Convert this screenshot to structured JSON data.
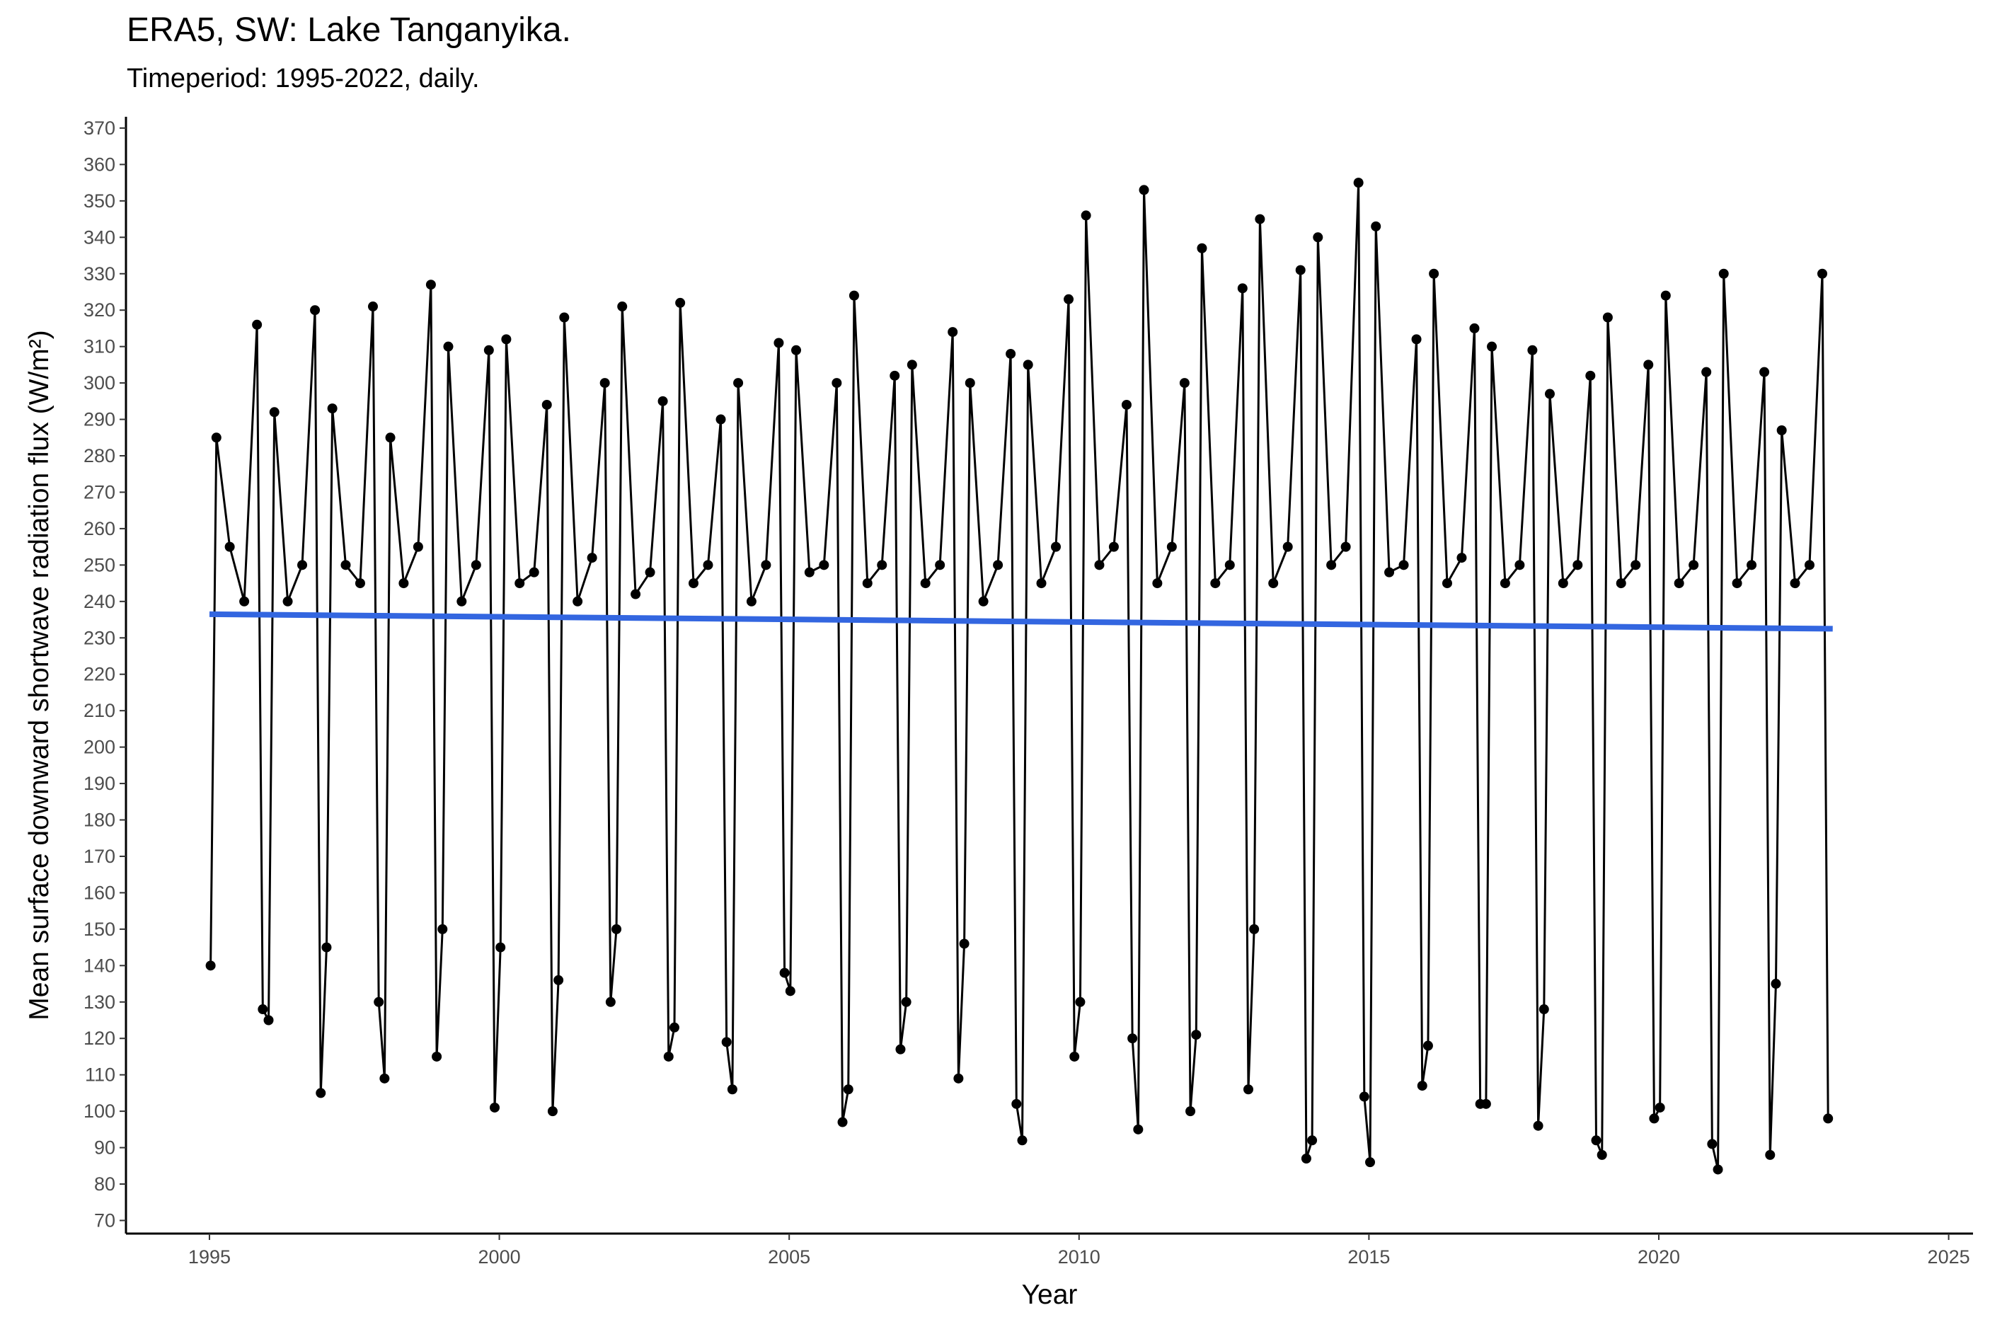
{
  "chart_data": {
    "type": "line",
    "title": "ERA5, SW: Lake Tanganyika.",
    "subtitle": "Timeperiod: 1995-2022, daily.",
    "x_label": "Year",
    "y_label": "Mean surface downward shortwave radiation flux (W/m²)",
    "xlim": [
      1993.56,
      2025.42
    ],
    "xticks": [
      1995,
      2000,
      2005,
      2010,
      2015,
      2020,
      2025
    ],
    "ylim": [
      66.4,
      373.1
    ],
    "yticks": [
      70,
      80,
      90,
      100,
      110,
      120,
      130,
      140,
      150,
      160,
      170,
      180,
      190,
      200,
      210,
      220,
      230,
      240,
      250,
      260,
      270,
      280,
      290,
      300,
      310,
      320,
      330,
      340,
      350,
      360,
      370
    ],
    "grid": false,
    "series": [
      {
        "name": "SW",
        "color": "#000000",
        "markers": true,
        "x": [
          1995.02,
          1995.12,
          1995.35,
          1995.6,
          1995.82,
          1995.92,
          1996.02,
          1996.12,
          1996.35,
          1996.6,
          1996.82,
          1996.92,
          1997.02,
          1997.12,
          1997.35,
          1997.6,
          1997.82,
          1997.92,
          1998.02,
          1998.12,
          1998.35,
          1998.6,
          1998.82,
          1998.92,
          1999.02,
          1999.12,
          1999.35,
          1999.6,
          1999.82,
          1999.92,
          2000.02,
          2000.12,
          2000.35,
          2000.6,
          2000.82,
          2000.92,
          2001.02,
          2001.12,
          2001.35,
          2001.6,
          2001.82,
          2001.92,
          2002.02,
          2002.12,
          2002.35,
          2002.6,
          2002.82,
          2002.92,
          2003.02,
          2003.12,
          2003.35,
          2003.6,
          2003.82,
          2003.92,
          2004.02,
          2004.12,
          2004.35,
          2004.6,
          2004.82,
          2004.92,
          2005.02,
          2005.12,
          2005.35,
          2005.6,
          2005.82,
          2005.92,
          2006.02,
          2006.12,
          2006.35,
          2006.6,
          2006.82,
          2006.92,
          2007.02,
          2007.12,
          2007.35,
          2007.6,
          2007.82,
          2007.92,
          2008.02,
          2008.12,
          2008.35,
          2008.6,
          2008.82,
          2008.92,
          2009.02,
          2009.12,
          2009.35,
          2009.6,
          2009.82,
          2009.92,
          2010.02,
          2010.12,
          2010.35,
          2010.6,
          2010.82,
          2010.92,
          2011.02,
          2011.12,
          2011.35,
          2011.6,
          2011.82,
          2011.92,
          2012.02,
          2012.12,
          2012.35,
          2012.6,
          2012.82,
          2012.92,
          2013.02,
          2013.12,
          2013.35,
          2013.6,
          2013.82,
          2013.92,
          2014.02,
          2014.12,
          2014.35,
          2014.6,
          2014.82,
          2014.92,
          2015.02,
          2015.12,
          2015.35,
          2015.6,
          2015.82,
          2015.92,
          2016.02,
          2016.12,
          2016.35,
          2016.6,
          2016.82,
          2016.92,
          2017.02,
          2017.12,
          2017.35,
          2017.6,
          2017.82,
          2017.92,
          2018.02,
          2018.12,
          2018.35,
          2018.6,
          2018.82,
          2018.92,
          2019.02,
          2019.12,
          2019.35,
          2019.6,
          2019.82,
          2019.92,
          2020.02,
          2020.12,
          2020.35,
          2020.6,
          2020.82,
          2020.92,
          2021.02,
          2021.12,
          2021.35,
          2021.6,
          2021.82,
          2021.92,
          2022.02,
          2022.12,
          2022.35,
          2022.6,
          2022.82,
          2022.92
        ],
        "values": [
          140,
          285,
          255,
          240,
          316,
          128,
          125,
          292,
          240,
          250,
          320,
          105,
          145,
          293,
          250,
          245,
          321,
          130,
          109,
          285,
          245,
          255,
          327,
          115,
          150,
          310,
          240,
          250,
          309,
          101,
          145,
          312,
          245,
          248,
          294,
          100,
          136,
          318,
          240,
          252,
          300,
          130,
          150,
          321,
          242,
          248,
          295,
          115,
          123,
          322,
          245,
          250,
          290,
          119,
          106,
          300,
          240,
          250,
          311,
          138,
          133,
          309,
          248,
          250,
          300,
          97,
          106,
          324,
          245,
          250,
          302,
          117,
          130,
          305,
          245,
          250,
          314,
          109,
          146,
          300,
          240,
          250,
          308,
          102,
          92,
          305,
          245,
          255,
          323,
          115,
          130,
          346,
          250,
          255,
          294,
          120,
          95,
          353,
          245,
          255,
          300,
          100,
          121,
          337,
          245,
          250,
          326,
          106,
          150,
          345,
          245,
          255,
          331,
          87,
          92,
          340,
          250,
          255,
          355,
          104,
          86,
          343,
          248,
          250,
          312,
          107,
          118,
          330,
          245,
          252,
          315,
          102,
          102,
          310,
          245,
          250,
          309,
          96,
          128,
          297,
          245,
          250,
          302,
          92,
          88,
          318,
          245,
          250,
          305,
          98,
          101,
          324,
          245,
          250,
          303,
          91,
          84,
          330,
          245,
          250,
          303,
          88,
          135,
          287,
          245,
          250,
          330,
          98
        ]
      },
      {
        "name": "Trend",
        "color": "#3366e0",
        "markers": false,
        "x": [
          1995,
          2023
        ],
        "values": [
          236.5,
          232.5
        ]
      }
    ]
  }
}
